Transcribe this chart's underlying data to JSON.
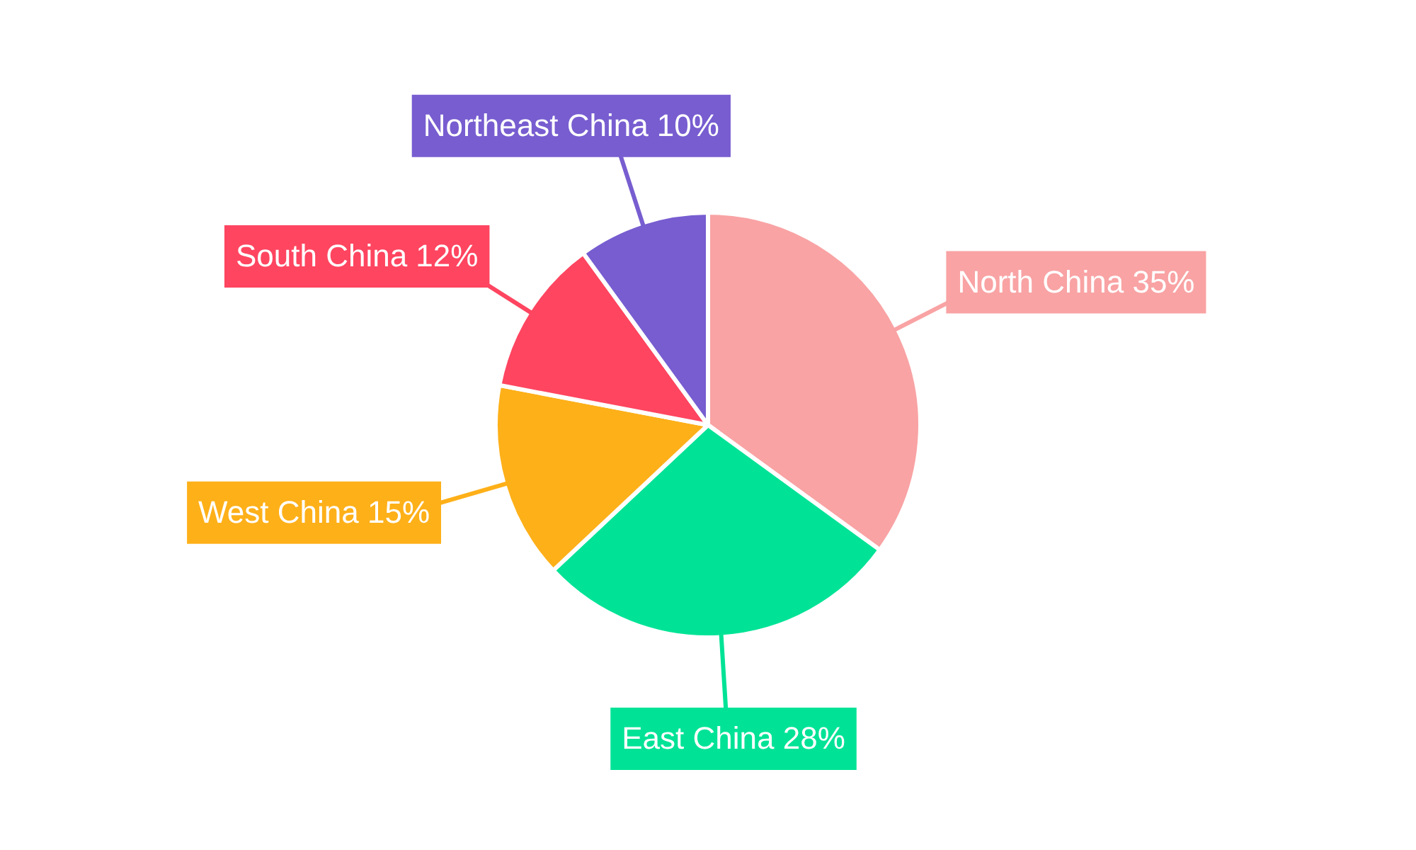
{
  "chart_data": {
    "type": "pie",
    "categories": [
      "North China",
      "East China",
      "West China",
      "South China",
      "Northeast China"
    ],
    "values": [
      35,
      28,
      15,
      12,
      10
    ],
    "colors": [
      "#f9a3a4",
      "#00e396",
      "#feb019",
      "#ff4560",
      "#775dd0"
    ],
    "value_labels": [
      "35%",
      "28%",
      "15%",
      "12%",
      "10%"
    ],
    "data_labels": true,
    "legend": false
  }
}
